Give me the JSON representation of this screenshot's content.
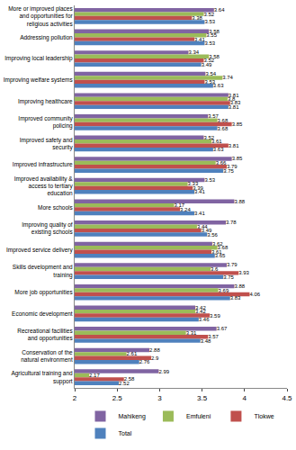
{
  "chart_data": {
    "type": "bar",
    "orientation": "horizontal",
    "data_labels": true,
    "grid": false,
    "legend": "bottom",
    "categories": [
      "More or improved places and opportunities for religious activities",
      "Addressing pollution",
      "Improving local leadership",
      "Improving welfare systems",
      "Improving healthcare",
      "Improved community policing",
      "Improved safety and security",
      "Improved infrastructure",
      "Improved availability & access to tertiary education",
      "More schools",
      "Improving quality of existing schools",
      "Improved service delivery",
      "Skills development and training",
      "More job opportunities",
      "Economic development",
      "Recreational facilities and opportunities",
      "Conservation of the natural environment",
      "Agricultural training and support"
    ],
    "series": [
      {
        "name": "Mahikeng",
        "color": "#8064a2",
        "values": [
          3.64,
          3.58,
          3.34,
          3.54,
          3.81,
          3.57,
          3.52,
          3.85,
          3.53,
          3.88,
          3.78,
          3.62,
          3.79,
          3.88,
          3.42,
          3.67,
          2.88,
          2.99
        ]
      },
      {
        "name": "Emfuleni",
        "color": "#9bbb59",
        "values": [
          3.52,
          3.55,
          3.58,
          3.74,
          3.8,
          3.68,
          3.61,
          3.66,
          3.33,
          3.17,
          3.44,
          3.68,
          3.6,
          3.69,
          3.42,
          3.31,
          2.61,
          2.17
        ]
      },
      {
        "name": "Tlokwe",
        "color": "#c0504d",
        "values": [
          3.38,
          3.41,
          3.52,
          3.53,
          3.83,
          3.85,
          3.81,
          3.79,
          3.39,
          3.24,
          3.49,
          3.61,
          3.93,
          4.06,
          3.59,
          3.57,
          2.9,
          2.58
        ]
      },
      {
        "name": "Total",
        "color": "#4f81bd",
        "values": [
          3.53,
          3.53,
          3.49,
          3.63,
          3.81,
          3.68,
          3.63,
          3.75,
          3.41,
          3.41,
          3.56,
          3.65,
          3.75,
          3.83,
          3.46,
          3.48,
          2.76,
          2.52
        ]
      }
    ],
    "xlim": [
      2,
      4.5
    ],
    "xticks": [
      2,
      2.5,
      3,
      3.5,
      4,
      4.5
    ]
  }
}
